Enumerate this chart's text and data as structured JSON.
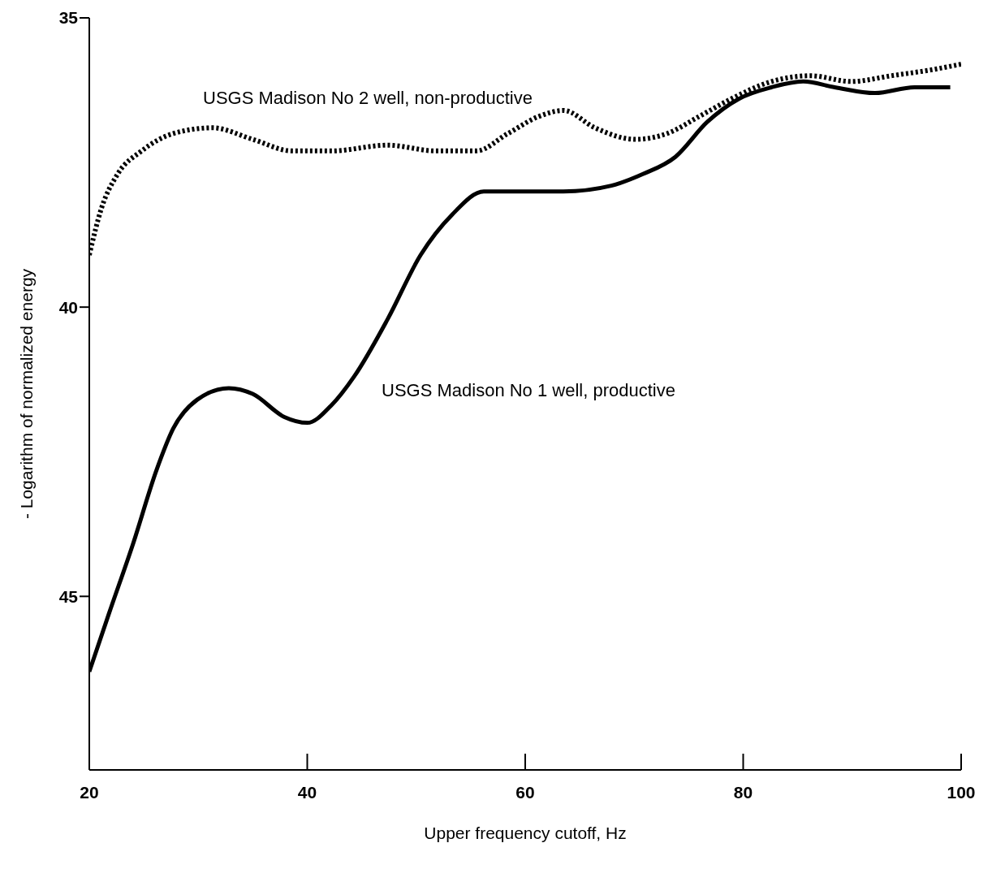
{
  "chart_data": {
    "type": "line",
    "xlabel": "Upper frequency cutoff, Hz",
    "ylabel": "- Logarithm of normalized energy",
    "xlim": [
      20,
      100
    ],
    "xticks": [
      20,
      40,
      60,
      80,
      100
    ],
    "ylim": [
      48,
      35
    ],
    "yticks": [
      35,
      40,
      45
    ],
    "grid": false,
    "legend": false,
    "marker": "none",
    "series": [
      {
        "color": "#000000",
        "line_style": "solid",
        "x": [
          20,
          21.8,
          24,
          26.2,
          27.7,
          29.9,
          32.8,
          35,
          37.9,
          40,
          42.2,
          44.3,
          47.4,
          50.4,
          53.3,
          56.2,
          59.8,
          63.5,
          67.9,
          70.8,
          73.8,
          76.7,
          79.6,
          82.6,
          85.5,
          88.4,
          92.1,
          95.7,
          99
        ],
        "values": [
          46.3,
          45.3,
          44.1,
          42.8,
          42.1,
          41.6,
          41.4,
          41.5,
          41.9,
          42.0,
          41.7,
          41.2,
          40.2,
          39.1,
          38.4,
          38.0,
          38.0,
          38.0,
          37.9,
          37.7,
          37.4,
          36.8,
          36.4,
          36.2,
          36.1,
          36.2,
          36.3,
          36.2,
          36.2
        ]
      },
      {
        "color": "#000000",
        "line_style": "dotted",
        "x": [
          20,
          21.1,
          22.6,
          24.8,
          27.7,
          31.3,
          35,
          38.6,
          42.2,
          47.4,
          51.8,
          55.5,
          58.4,
          61.3,
          63.5,
          66.4,
          70.1,
          73,
          76,
          78.9,
          82.6,
          86.2,
          89.9,
          93.6,
          97.2,
          100
        ],
        "values": [
          39.1,
          38.3,
          37.7,
          37.3,
          37.0,
          36.9,
          37.1,
          37.3,
          37.3,
          37.2,
          37.3,
          37.3,
          37.0,
          36.7,
          36.6,
          36.9,
          37.1,
          37.0,
          36.7,
          36.4,
          36.1,
          36.0,
          36.1,
          36.0,
          35.9,
          35.8
        ]
      }
    ],
    "annotations": [
      "USGS Madison No 2 well, non-productive",
      "USGS Madison No 1 well, productive"
    ]
  }
}
